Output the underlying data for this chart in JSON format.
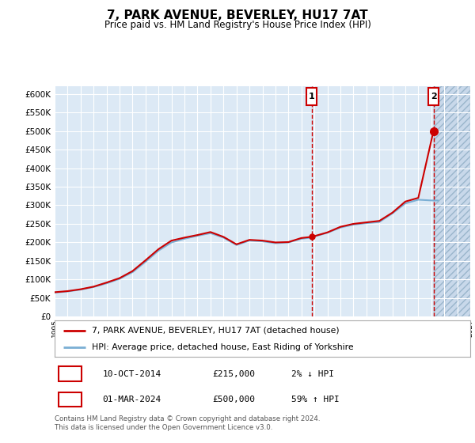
{
  "title": "7, PARK AVENUE, BEVERLEY, HU17 7AT",
  "subtitle": "Price paid vs. HM Land Registry's House Price Index (HPI)",
  "legend_line1": "7, PARK AVENUE, BEVERLEY, HU17 7AT (detached house)",
  "legend_line2": "HPI: Average price, detached house, East Riding of Yorkshire",
  "annotation1_date": "10-OCT-2014",
  "annotation1_price": "£215,000",
  "annotation1_hpi": "2% ↓ HPI",
  "annotation1_year": 2014.78,
  "annotation1_value": 215000,
  "annotation2_date": "01-MAR-2024",
  "annotation2_price": "£500,000",
  "annotation2_hpi": "59% ↑ HPI",
  "annotation2_year": 2024.17,
  "annotation2_value": 500000,
  "footer": "Contains HM Land Registry data © Crown copyright and database right 2024.\nThis data is licensed under the Open Government Licence v3.0.",
  "ylim": [
    0,
    620000
  ],
  "xlim_start": 1995,
  "xlim_end": 2027,
  "background_color": "#dce9f5",
  "grid_color": "#ffffff",
  "line_color_red": "#cc0000",
  "line_color_blue": "#7bafd4",
  "vline_color": "#cc0000",
  "box_color": "#cc0000",
  "future_start": 2024.17,
  "hpi_years": [
    1995.0,
    1996.0,
    1997.0,
    1998.0,
    1999.0,
    2000.0,
    2001.0,
    2002.0,
    2003.0,
    2004.0,
    2005.0,
    2006.0,
    2007.0,
    2008.0,
    2009.0,
    2010.0,
    2011.0,
    2012.0,
    2013.0,
    2014.0,
    2014.78,
    2015.0,
    2016.0,
    2017.0,
    2018.0,
    2019.0,
    2020.0,
    2021.0,
    2022.0,
    2023.0,
    2024.0,
    2024.5
  ],
  "hpi_values": [
    65000,
    68000,
    73000,
    80000,
    90000,
    102000,
    120000,
    148000,
    178000,
    200000,
    210000,
    218000,
    225000,
    213000,
    193000,
    205000,
    203000,
    198000,
    200000,
    210000,
    213000,
    216000,
    226000,
    240000,
    248000,
    252000,
    255000,
    278000,
    305000,
    315000,
    313000,
    313000
  ],
  "red_years": [
    1995.0,
    1996.0,
    1997.0,
    1998.0,
    1999.0,
    2000.0,
    2001.0,
    2002.0,
    2003.0,
    2004.0,
    2005.0,
    2006.0,
    2007.0,
    2008.0,
    2009.0,
    2010.0,
    2011.0,
    2012.0,
    2013.0,
    2014.0,
    2014.78,
    2015.0,
    2016.0,
    2017.0,
    2018.0,
    2019.0,
    2020.0,
    2021.0,
    2022.0,
    2023.0,
    2024.17
  ],
  "red_values": [
    66000,
    69000,
    74000,
    81000,
    92000,
    104000,
    123000,
    152000,
    182000,
    205000,
    213000,
    220000,
    228000,
    215000,
    195000,
    207000,
    205000,
    200000,
    201000,
    212000,
    215000,
    217000,
    227000,
    242000,
    250000,
    254000,
    258000,
    280000,
    310000,
    320000,
    500000
  ]
}
